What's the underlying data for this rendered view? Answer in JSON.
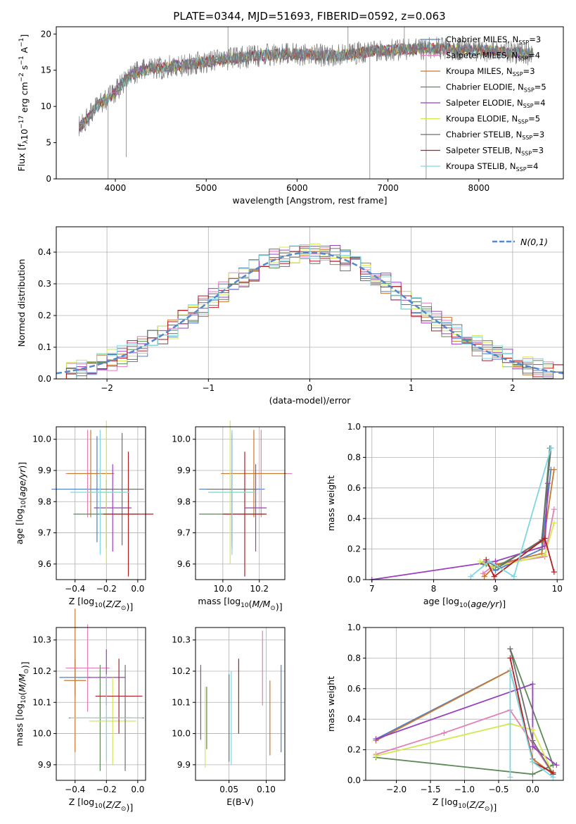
{
  "figure": {
    "title": "PLATE=0344, MJD=51693, FIBERID=0592, z=0.063"
  },
  "colors": {
    "Chabrier MILES": "#4c7fc8",
    "Salpeter MILES": "#e27fb9",
    "Kroupa MILES": "#c9782f",
    "Chabrier ELODIE": "#5b8a56",
    "Salpeter ELODIE": "#9b3fbf",
    "Kroupa ELODIE": "#d4e84f",
    "Chabrier STELIB": "#6e6e6e",
    "Salpeter STELIB": "#b01f24",
    "Kroupa STELIB": "#7fd6e2",
    "normal": "#5588cc"
  },
  "chart_data": [
    {
      "type": "line",
      "id": "spectrum",
      "xlabel": "wavelength [Angstrom, rest frame]",
      "ylabel": "Flux [f",
      "xlim": [
        3350,
        8930
      ],
      "ylim": [
        0,
        21
      ],
      "xticks": [
        4000,
        5000,
        6000,
        7000,
        8000
      ],
      "yticks": [
        0,
        5,
        10,
        15,
        20
      ],
      "grid": false,
      "legend_position": "upper right",
      "data_color": "#7a7a7a",
      "data_x_range": [
        3600,
        8600
      ],
      "continuum": {
        "x": [
          3600,
          3700,
          3800,
          3900,
          4000,
          4100,
          4200,
          4300,
          4400,
          4600,
          4800,
          5000,
          5200,
          5400,
          5600,
          5800,
          6000,
          6200,
          6400,
          6600,
          6800,
          7000,
          7200,
          7400,
          7600,
          7800,
          8000,
          8200,
          8400,
          8600
        ],
        "y": [
          7,
          8.5,
          10,
          11,
          12,
          13.5,
          14.5,
          15,
          15.2,
          15.5,
          15.8,
          16.2,
          16.5,
          16.8,
          17,
          17.2,
          17.2,
          17.1,
          17,
          17.2,
          17.6,
          17.8,
          17.9,
          18,
          18,
          17.9,
          17.8,
          17.6,
          17.4,
          17.2
        ]
      },
      "series": [
        {
          "name": "Chabrier MILES",
          "ssp": "3"
        },
        {
          "name": "Salpeter MILES",
          "ssp": "4"
        },
        {
          "name": "Kroupa MILES",
          "ssp": "3"
        },
        {
          "name": "Chabrier ELODIE",
          "ssp": "5"
        },
        {
          "name": "Salpeter ELODIE",
          "ssp": "4"
        },
        {
          "name": "Kroupa ELODIE",
          "ssp": "5"
        },
        {
          "name": "Chabrier STELIB",
          "ssp": "3"
        },
        {
          "name": "Salpeter STELIB",
          "ssp": "3"
        },
        {
          "name": "Kroupa STELIB",
          "ssp": "4"
        }
      ]
    },
    {
      "type": "area",
      "id": "residuals",
      "xlabel": "(data-model)/error",
      "ylabel": "Normed distribution",
      "xlim": [
        -2.5,
        2.5
      ],
      "ylim": [
        0,
        0.48
      ],
      "xticks": [
        -2,
        -1,
        0,
        1,
        2
      ],
      "yticks": [
        0.0,
        0.1,
        0.2,
        0.3,
        0.4
      ],
      "grid": true,
      "legend_position": "upper right",
      "legend_label": "N(0,1)",
      "bin_width": 0.1,
      "x_start": -2.5,
      "normal": {
        "mean": 0,
        "sd": 1
      }
    },
    {
      "type": "scatter",
      "id": "age-vs-Z",
      "xlabel": "Z [log",
      "ylabel": "age  [log",
      "xlim": [
        -0.52,
        0.05
      ],
      "ylim": [
        9.55,
        10.04
      ],
      "xticks": [
        -0.4,
        -0.2,
        0.0
      ],
      "yticks": [
        9.6,
        9.7,
        9.8,
        9.9,
        10.0
      ],
      "grid": true,
      "points": [
        {
          "series": "Chabrier MILES",
          "x": -0.26,
          "xerr": 0.29,
          "y": 9.84,
          "yerr": 0.17
        },
        {
          "series": "Salpeter MILES",
          "x": -0.32,
          "xerr": 0.14,
          "y": 9.89,
          "yerr": 0.14
        },
        {
          "series": "Kroupa MILES",
          "x": -0.3,
          "xerr": 0.15,
          "y": 9.89,
          "yerr": 0.14
        },
        {
          "series": "Chabrier ELODIE",
          "x": -0.2,
          "xerr": 0.21,
          "y": 9.76,
          "yerr": 0.11
        },
        {
          "series": "Salpeter ELODIE",
          "x": -0.16,
          "xerr": 0.12,
          "y": 9.78,
          "yerr": 0.14
        },
        {
          "series": "Kroupa ELODIE",
          "x": -0.2,
          "xerr": 0.12,
          "y": 9.83,
          "yerr": 0.23
        },
        {
          "series": "Chabrier STELIB",
          "x": -0.1,
          "xerr": 0.14,
          "y": 9.84,
          "yerr": 0.18
        },
        {
          "series": "Salpeter STELIB",
          "x": -0.06,
          "xerr": 0.16,
          "y": 9.76,
          "yerr": 0.2
        },
        {
          "series": "Kroupa STELIB",
          "x": -0.24,
          "xerr": 0.19,
          "y": 9.83,
          "yerr": 0.2
        }
      ]
    },
    {
      "type": "scatter",
      "id": "age-vs-mass",
      "xlabel": "mass [log",
      "ylabel": "",
      "xlim": [
        9.85,
        10.34
      ],
      "ylim": [
        9.55,
        10.04
      ],
      "xticks": [
        10.0,
        10.2
      ],
      "yticks": [
        9.6,
        9.7,
        9.8,
        9.9,
        10.0
      ],
      "grid": true,
      "points": [
        {
          "series": "Chabrier MILES",
          "x": 10.05,
          "xerr": 0.18,
          "y": 9.84,
          "yerr": 0.17
        },
        {
          "series": "Salpeter MILES",
          "x": 10.21,
          "xerr": 0.17,
          "y": 9.89,
          "yerr": 0.14
        },
        {
          "series": "Kroupa MILES",
          "x": 10.17,
          "xerr": 0.18,
          "y": 9.89,
          "yerr": 0.14
        },
        {
          "series": "Chabrier ELODIE",
          "x": 10.05,
          "xerr": 0.18,
          "y": 9.76,
          "yerr": 0.11
        },
        {
          "series": "Salpeter ELODIE",
          "x": 10.18,
          "xerr": 0.06,
          "y": 9.78,
          "yerr": 0.14
        },
        {
          "series": "Kroupa ELODIE",
          "x": 10.04,
          "xerr": 0.12,
          "y": 9.83,
          "yerr": 0.23
        },
        {
          "series": "Chabrier STELIB",
          "x": 10.05,
          "xerr": 0.14,
          "y": 9.84,
          "yerr": 0.18
        },
        {
          "series": "Salpeter STELIB",
          "x": 10.12,
          "xerr": 0.12,
          "y": 9.76,
          "yerr": 0.2
        },
        {
          "series": "Kroupa STELIB",
          "x": 10.05,
          "xerr": 0.13,
          "y": 9.83,
          "yerr": 0.2
        }
      ]
    },
    {
      "type": "line",
      "id": "weight-vs-age",
      "xlabel": "age  [log",
      "ylabel": "mass weight",
      "xlim": [
        6.9,
        10.1
      ],
      "ylim": [
        0,
        1.0
      ],
      "xticks": [
        7,
        8,
        9,
        10
      ],
      "yticks": [
        0.0,
        0.2,
        0.4,
        0.6,
        0.8,
        1.0
      ],
      "grid": true,
      "series": [
        {
          "name": "Chabrier MILES",
          "x": [
            8.85,
            9.0,
            9.75,
            9.9
          ],
          "y": [
            0.1,
            0.06,
            0.2,
            0.72
          ]
        },
        {
          "name": "Salpeter MILES",
          "x": [
            8.8,
            9.0,
            9.8,
            9.95
          ],
          "y": [
            0.04,
            0.1,
            0.15,
            0.46
          ]
        },
        {
          "name": "Kroupa MILES",
          "x": [
            8.82,
            9.02,
            9.75,
            9.95
          ],
          "y": [
            0.02,
            0.1,
            0.17,
            0.72
          ]
        },
        {
          "name": "Chabrier ELODIE",
          "x": [
            8.8,
            9.0,
            9.75,
            9.88
          ],
          "y": [
            0.1,
            0.08,
            0.25,
            0.86
          ]
        },
        {
          "name": "Salpeter ELODIE",
          "x": [
            7.0,
            9.0,
            9.8,
            9.85
          ],
          "y": [
            0.0,
            0.12,
            0.22,
            0.63
          ]
        },
        {
          "name": "Kroupa ELODIE",
          "x": [
            8.75,
            8.95,
            9.8,
            9.95
          ],
          "y": [
            0.12,
            0.08,
            0.16,
            0.37
          ]
        },
        {
          "name": "Chabrier STELIB",
          "x": [
            8.85,
            9.05,
            9.75,
            9.9
          ],
          "y": [
            0.12,
            0.08,
            0.26,
            0.86
          ]
        },
        {
          "name": "Salpeter STELIB",
          "x": [
            8.85,
            8.98,
            9.8,
            9.95
          ],
          "y": [
            0.13,
            0.02,
            0.27,
            0.05
          ]
        },
        {
          "name": "Kroupa STELIB",
          "x": [
            8.6,
            8.9,
            9.3,
            9.9
          ],
          "y": [
            0.02,
            0.12,
            0.02,
            0.86
          ]
        }
      ]
    },
    {
      "type": "scatter",
      "id": "mass-vs-Z",
      "xlabel": "Z [log",
      "ylabel": "mass [log",
      "xlim": [
        -0.52,
        0.05
      ],
      "ylim": [
        9.85,
        10.34
      ],
      "xticks": [
        -0.4,
        -0.2,
        0.0
      ],
      "yticks": [
        9.9,
        10.0,
        10.1,
        10.2,
        10.3
      ],
      "grid": true,
      "points": [
        {
          "series": "Chabrier MILES",
          "x": -0.4,
          "xerr": 0.1,
          "y": 10.18,
          "yerr": 0.06
        },
        {
          "series": "Salpeter MILES",
          "x": -0.32,
          "xerr": 0.14,
          "y": 10.21,
          "yerr": 0.14
        },
        {
          "series": "Kroupa MILES",
          "x": -0.4,
          "xerr": 0.07,
          "y": 10.17,
          "yerr": 0.23
        },
        {
          "series": "Chabrier ELODIE",
          "x": -0.24,
          "xerr": 0.2,
          "y": 10.05,
          "yerr": 0.17
        },
        {
          "series": "Salpeter ELODIE",
          "x": -0.2,
          "xerr": 0.12,
          "y": 10.18,
          "yerr": 0.09
        },
        {
          "series": "Kroupa ELODIE",
          "x": -0.16,
          "xerr": 0.15,
          "y": 10.04,
          "yerr": 0.14
        },
        {
          "series": "Chabrier STELIB",
          "x": -0.08,
          "xerr": 0.12,
          "y": 10.05,
          "yerr": 0.17
        },
        {
          "series": "Salpeter STELIB",
          "x": -0.12,
          "xerr": 0.15,
          "y": 10.12,
          "yerr": 0.12
        },
        {
          "series": "Kroupa STELIB",
          "x": -0.2,
          "xerr": 0.23,
          "y": 10.05,
          "yerr": 0.14
        }
      ]
    },
    {
      "type": "scatter",
      "id": "mass-vs-ebv",
      "xlabel": "E(B-V)",
      "ylabel": "",
      "xlim": [
        0.005,
        0.125
      ],
      "ylim": [
        9.85,
        10.34
      ],
      "xticks": [
        0.05,
        0.1
      ],
      "yticks": [
        9.9,
        10.0,
        10.1,
        10.2,
        10.3
      ],
      "grid": true,
      "points": [
        {
          "series": "Chabrier MILES",
          "x": 0.12,
          "xerr": 0,
          "y": 10.08,
          "yerr": 0.14
        },
        {
          "series": "Salpeter MILES",
          "x": 0.095,
          "xerr": 0,
          "y": 10.21,
          "yerr": 0.12
        },
        {
          "series": "Kroupa MILES",
          "x": 0.105,
          "xerr": 0,
          "y": 10.05,
          "yerr": 0.12
        },
        {
          "series": "Chabrier ELODIE",
          "x": 0.02,
          "xerr": 0,
          "y": 10.05,
          "yerr": 0.1
        },
        {
          "series": "Salpeter ELODIE",
          "x": 0.012,
          "xerr": 0,
          "y": 10.1,
          "yerr": 0.12
        },
        {
          "series": "Kroupa ELODIE",
          "x": 0.018,
          "xerr": 0,
          "y": 10.02,
          "yerr": 0.13
        },
        {
          "series": "Chabrier STELIB",
          "x": 0.05,
          "xerr": 0,
          "y": 10.05,
          "yerr": 0.14
        },
        {
          "series": "Salpeter STELIB",
          "x": 0.063,
          "xerr": 0,
          "y": 10.12,
          "yerr": 0.12
        },
        {
          "series": "Kroupa STELIB",
          "x": 0.053,
          "xerr": 0,
          "y": 10.05,
          "yerr": 0.15
        }
      ]
    },
    {
      "type": "line",
      "id": "weight-vs-Z",
      "xlabel": "Z [log",
      "ylabel": "mass weight",
      "xlim": [
        -2.45,
        0.45
      ],
      "ylim": [
        0,
        1.0
      ],
      "xticks": [
        -2.0,
        -1.5,
        -1.0,
        -0.5,
        0.0
      ],
      "yticks": [
        0.0,
        0.2,
        0.4,
        0.6,
        0.8,
        1.0
      ],
      "grid": true,
      "series": [
        {
          "name": "Chabrier MILES",
          "x": [
            -2.3,
            -0.33,
            0.0,
            0.3
          ],
          "y": [
            0.27,
            0.72,
            0.14,
            0.04
          ]
        },
        {
          "name": "Salpeter MILES",
          "x": [
            -2.3,
            -1.3,
            -0.33,
            0.3
          ],
          "y": [
            0.17,
            0.31,
            0.46,
            0.04
          ]
        },
        {
          "name": "Kroupa MILES",
          "x": [
            -2.3,
            -0.33,
            0.0,
            0.3
          ],
          "y": [
            0.26,
            0.72,
            0.14,
            0.04
          ]
        },
        {
          "name": "Chabrier ELODIE",
          "x": [
            -2.3,
            0.0,
            0.3,
            -0.33
          ],
          "y": [
            0.15,
            0.04,
            0.1,
            0.86
          ]
        },
        {
          "name": "Salpeter ELODIE",
          "x": [
            -2.3,
            0.0,
            0.0,
            0.35
          ],
          "y": [
            0.27,
            0.63,
            0.22,
            0.1
          ]
        },
        {
          "name": "Kroupa ELODIE",
          "x": [
            -2.3,
            -0.33,
            0.0,
            0.3
          ],
          "y": [
            0.16,
            0.37,
            0.33,
            0.04
          ]
        },
        {
          "name": "Chabrier STELIB",
          "x": [
            -0.33,
            0.0,
            0.3,
            0.3
          ],
          "y": [
            0.86,
            0.26,
            0.04,
            0.04
          ]
        },
        {
          "name": "Salpeter STELIB",
          "x": [
            -0.33,
            0.0,
            0.3,
            0.3
          ],
          "y": [
            0.8,
            0.12,
            0.05,
            0.04
          ]
        },
        {
          "name": "Kroupa STELIB",
          "x": [
            -0.33,
            -0.33,
            0.0,
            0.3
          ],
          "y": [
            0.02,
            0.72,
            0.12,
            0.02
          ]
        }
      ]
    }
  ]
}
